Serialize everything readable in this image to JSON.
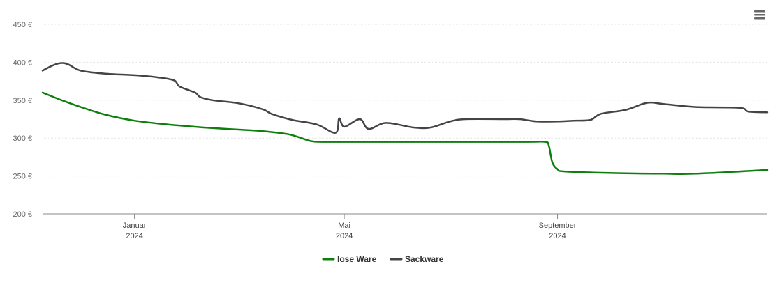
{
  "chart_data": {
    "type": "line",
    "title": "",
    "xlabel": "",
    "ylabel": "",
    "ylim": [
      200,
      450
    ],
    "yticks": [
      200,
      250,
      300,
      350,
      400,
      450
    ],
    "ytick_labels": [
      "200 €",
      "250 €",
      "300 €",
      "350 €",
      "400 €",
      "450 €"
    ],
    "xlim": [
      "2023-11-09",
      "2024-12-31"
    ],
    "xticks": [
      {
        "date": "2024-01-01",
        "month": "Januar",
        "year": "2024"
      },
      {
        "date": "2024-05-01",
        "month": "Mai",
        "year": "2024"
      },
      {
        "date": "2024-09-01",
        "month": "September",
        "year": "2024"
      }
    ],
    "grid": true,
    "legend_position": "bottom-center",
    "series": [
      {
        "name": "lose Ware",
        "color": "#0c7f0c",
        "points": [
          [
            "2023-11-09",
            360
          ],
          [
            "2023-11-20",
            350
          ],
          [
            "2023-12-01",
            341
          ],
          [
            "2023-12-15",
            331
          ],
          [
            "2024-01-01",
            323
          ],
          [
            "2024-01-20",
            318
          ],
          [
            "2024-02-10",
            314
          ],
          [
            "2024-03-10",
            310
          ],
          [
            "2024-03-20",
            308
          ],
          [
            "2024-03-30",
            305
          ],
          [
            "2024-04-05",
            301
          ],
          [
            "2024-04-12",
            296
          ],
          [
            "2024-04-20",
            295
          ],
          [
            "2024-05-15",
            295
          ],
          [
            "2024-06-15",
            295
          ],
          [
            "2024-07-15",
            295
          ],
          [
            "2024-08-15",
            295
          ],
          [
            "2024-08-25",
            295
          ],
          [
            "2024-08-27",
            290
          ],
          [
            "2024-08-29",
            268
          ],
          [
            "2024-09-01",
            259
          ],
          [
            "2024-09-05",
            256
          ],
          [
            "2024-10-01",
            254
          ],
          [
            "2024-11-01",
            253
          ],
          [
            "2024-11-20",
            253
          ],
          [
            "2024-12-31",
            258
          ]
        ]
      },
      {
        "name": "Sackware",
        "color": "#444448",
        "points": [
          [
            "2023-11-09",
            389
          ],
          [
            "2023-11-15",
            396
          ],
          [
            "2023-11-20",
            399
          ],
          [
            "2023-11-24",
            397
          ],
          [
            "2023-12-01",
            389
          ],
          [
            "2023-12-15",
            385
          ],
          [
            "2024-01-01",
            383
          ],
          [
            "2024-01-15",
            380
          ],
          [
            "2024-01-24",
            376
          ],
          [
            "2024-01-27",
            368
          ],
          [
            "2024-02-05",
            360
          ],
          [
            "2024-02-08",
            354
          ],
          [
            "2024-02-15",
            350
          ],
          [
            "2024-03-01",
            346
          ],
          [
            "2024-03-15",
            338
          ],
          [
            "2024-03-20",
            332
          ],
          [
            "2024-04-01",
            324
          ],
          [
            "2024-04-15",
            318
          ],
          [
            "2024-05-01",
            315
          ],
          [
            "2024-05-15",
            312
          ],
          [
            "2024-04-26",
            307
          ],
          [
            "2024-04-28",
            326
          ],
          [
            "2024-05-10",
            325
          ],
          [
            "2024-05-25",
            320
          ],
          [
            "2024-06-10",
            314
          ],
          [
            "2024-06-20",
            314
          ],
          [
            "2024-07-01",
            322
          ],
          [
            "2024-07-10",
            325
          ],
          [
            "2024-08-01",
            325
          ],
          [
            "2024-08-10",
            325
          ],
          [
            "2024-08-20",
            322
          ],
          [
            "2024-09-01",
            322
          ],
          [
            "2024-09-10",
            323
          ],
          [
            "2024-09-20",
            324
          ],
          [
            "2024-09-26",
            332
          ],
          [
            "2024-10-10",
            337
          ],
          [
            "2024-10-20",
            345
          ],
          [
            "2024-10-25",
            347
          ],
          [
            "2024-11-01",
            345
          ],
          [
            "2024-11-20",
            341
          ],
          [
            "2024-12-15",
            340
          ],
          [
            "2024-12-20",
            335
          ],
          [
            "2024-12-31",
            334
          ]
        ]
      }
    ]
  },
  "menu": {
    "icon": "hamburger-menu-icon"
  }
}
